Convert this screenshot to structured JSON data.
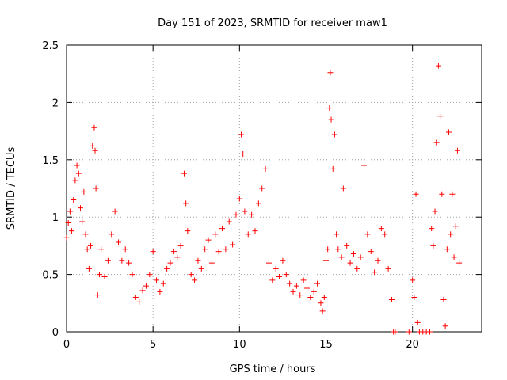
{
  "chart_data": {
    "type": "scatter",
    "title": "Day 151 of 2023, SRMTID for receiver maw1",
    "xlabel": "GPS time / hours",
    "ylabel": "SRMTID / TECUs",
    "xlim": [
      0,
      24
    ],
    "ylim": [
      0,
      2.5
    ],
    "xticks": [
      0,
      5,
      10,
      15,
      20
    ],
    "xtick_labels": [
      "0",
      "5",
      "10",
      "15",
      "20"
    ],
    "yticks": [
      0,
      0.5,
      1,
      1.5,
      2,
      2.5
    ],
    "ytick_labels": [
      "0",
      "0.5",
      "1",
      "1.5",
      "2",
      "2.5"
    ],
    "grid": true,
    "marker": "+",
    "marker_color": "#ff0000",
    "series": [
      {
        "name": "SRMTID",
        "points": [
          [
            0.0,
            0.82
          ],
          [
            0.1,
            0.95
          ],
          [
            0.2,
            1.05
          ],
          [
            0.3,
            0.88
          ],
          [
            0.4,
            1.15
          ],
          [
            0.5,
            1.32
          ],
          [
            0.6,
            1.45
          ],
          [
            0.7,
            1.38
          ],
          [
            0.8,
            1.08
          ],
          [
            0.9,
            0.96
          ],
          [
            1.0,
            1.22
          ],
          [
            1.1,
            0.85
          ],
          [
            1.2,
            0.72
          ],
          [
            1.3,
            0.55
          ],
          [
            1.4,
            0.75
          ],
          [
            1.5,
            1.62
          ],
          [
            1.6,
            1.78
          ],
          [
            1.65,
            1.58
          ],
          [
            1.7,
            1.25
          ],
          [
            1.8,
            0.32
          ],
          [
            1.9,
            0.5
          ],
          [
            2.0,
            0.72
          ],
          [
            2.2,
            0.48
          ],
          [
            2.4,
            0.62
          ],
          [
            2.6,
            0.85
          ],
          [
            2.8,
            1.05
          ],
          [
            3.0,
            0.78
          ],
          [
            3.2,
            0.62
          ],
          [
            3.4,
            0.72
          ],
          [
            3.6,
            0.6
          ],
          [
            3.8,
            0.5
          ],
          [
            4.0,
            0.3
          ],
          [
            4.2,
            0.26
          ],
          [
            4.4,
            0.36
          ],
          [
            4.6,
            0.4
          ],
          [
            4.8,
            0.5
          ],
          [
            5.0,
            0.7
          ],
          [
            5.2,
            0.45
          ],
          [
            5.4,
            0.35
          ],
          [
            5.6,
            0.42
          ],
          [
            5.8,
            0.55
          ],
          [
            6.0,
            0.6
          ],
          [
            6.2,
            0.7
          ],
          [
            6.4,
            0.65
          ],
          [
            6.6,
            0.75
          ],
          [
            6.8,
            1.38
          ],
          [
            6.9,
            1.12
          ],
          [
            7.0,
            0.88
          ],
          [
            7.2,
            0.5
          ],
          [
            7.4,
            0.45
          ],
          [
            7.6,
            0.62
          ],
          [
            7.8,
            0.55
          ],
          [
            8.0,
            0.72
          ],
          [
            8.2,
            0.8
          ],
          [
            8.4,
            0.6
          ],
          [
            8.6,
            0.85
          ],
          [
            8.8,
            0.7
          ],
          [
            9.0,
            0.9
          ],
          [
            9.2,
            0.72
          ],
          [
            9.4,
            0.96
          ],
          [
            9.6,
            0.76
          ],
          [
            9.8,
            1.02
          ],
          [
            10.0,
            1.16
          ],
          [
            10.1,
            1.72
          ],
          [
            10.2,
            1.55
          ],
          [
            10.3,
            1.05
          ],
          [
            10.5,
            0.85
          ],
          [
            10.7,
            1.02
          ],
          [
            10.9,
            0.88
          ],
          [
            11.1,
            1.12
          ],
          [
            11.3,
            1.25
          ],
          [
            11.5,
            1.42
          ],
          [
            11.7,
            0.6
          ],
          [
            11.9,
            0.45
          ],
          [
            12.1,
            0.55
          ],
          [
            12.3,
            0.48
          ],
          [
            12.5,
            0.62
          ],
          [
            12.7,
            0.5
          ],
          [
            12.9,
            0.42
          ],
          [
            13.1,
            0.35
          ],
          [
            13.3,
            0.4
          ],
          [
            13.5,
            0.32
          ],
          [
            13.7,
            0.45
          ],
          [
            13.9,
            0.38
          ],
          [
            14.1,
            0.3
          ],
          [
            14.3,
            0.35
          ],
          [
            14.5,
            0.42
          ],
          [
            14.7,
            0.25
          ],
          [
            14.8,
            0.18
          ],
          [
            14.9,
            0.3
          ],
          [
            15.0,
            0.62
          ],
          [
            15.1,
            0.72
          ],
          [
            15.2,
            1.95
          ],
          [
            15.25,
            2.26
          ],
          [
            15.3,
            1.85
          ],
          [
            15.4,
            1.42
          ],
          [
            15.5,
            1.72
          ],
          [
            15.6,
            0.85
          ],
          [
            15.7,
            0.72
          ],
          [
            15.9,
            0.65
          ],
          [
            16.0,
            1.25
          ],
          [
            16.2,
            0.75
          ],
          [
            16.4,
            0.6
          ],
          [
            16.6,
            0.68
          ],
          [
            16.8,
            0.55
          ],
          [
            17.0,
            0.65
          ],
          [
            17.2,
            1.45
          ],
          [
            17.4,
            0.85
          ],
          [
            17.6,
            0.7
          ],
          [
            17.8,
            0.52
          ],
          [
            18.0,
            0.62
          ],
          [
            18.2,
            0.9
          ],
          [
            18.4,
            0.85
          ],
          [
            18.6,
            0.55
          ],
          [
            18.8,
            0.28
          ],
          [
            18.9,
            0.0
          ],
          [
            19.0,
            0.0
          ],
          [
            19.8,
            0.0
          ],
          [
            20.0,
            0.45
          ],
          [
            20.1,
            0.3
          ],
          [
            20.2,
            1.2
          ],
          [
            20.3,
            0.08
          ],
          [
            20.4,
            0.0
          ],
          [
            20.6,
            0.0
          ],
          [
            20.8,
            0.0
          ],
          [
            21.0,
            0.0
          ],
          [
            21.1,
            0.9
          ],
          [
            21.2,
            0.75
          ],
          [
            21.3,
            1.05
          ],
          [
            21.4,
            1.65
          ],
          [
            21.5,
            2.32
          ],
          [
            21.6,
            1.88
          ],
          [
            21.7,
            1.2
          ],
          [
            21.8,
            0.28
          ],
          [
            21.9,
            0.05
          ],
          [
            22.0,
            0.72
          ],
          [
            22.1,
            1.74
          ],
          [
            22.2,
            0.85
          ],
          [
            22.3,
            1.2
          ],
          [
            22.4,
            0.65
          ],
          [
            22.5,
            0.92
          ],
          [
            22.6,
            1.58
          ],
          [
            22.7,
            0.6
          ]
        ]
      }
    ]
  }
}
